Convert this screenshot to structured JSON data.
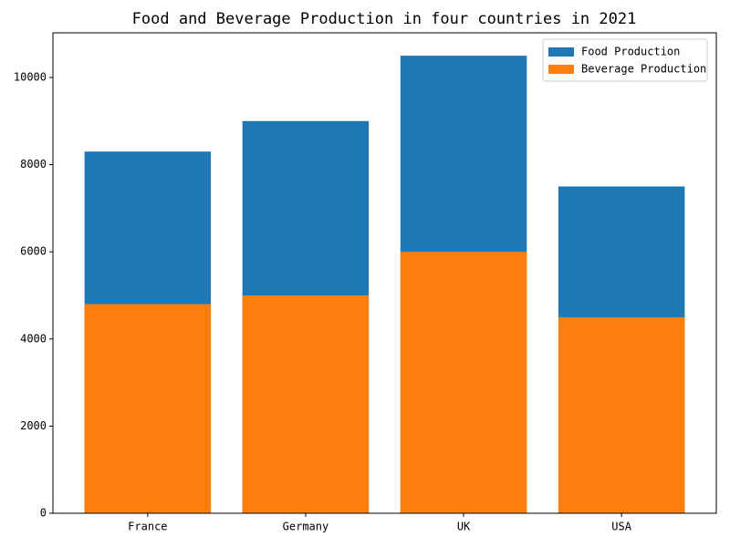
{
  "chart_data": {
    "type": "bar",
    "title": "Food and Beverage Production in four countries in 2021",
    "categories": [
      "France",
      "Germany",
      "UK",
      "USA"
    ],
    "series": [
      {
        "name": "Food Production",
        "color": "#1f77b4",
        "values": [
          8300,
          9000,
          10500,
          7500
        ]
      },
      {
        "name": "Beverage Production",
        "color": "#ff7f0e",
        "values": [
          4800,
          5000,
          6000,
          4500
        ]
      }
    ],
    "ylim": [
      0,
      11025
    ],
    "yticks": [
      0,
      2000,
      4000,
      6000,
      8000,
      10000
    ],
    "grid": false,
    "legend": "upper right"
  }
}
